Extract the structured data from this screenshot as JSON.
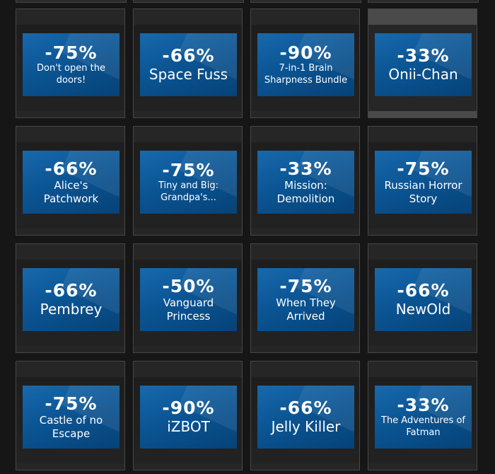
{
  "tiles": [
    {
      "discount": "-75%",
      "name": "Don't open the doors!"
    },
    {
      "discount": "-66%",
      "name": "Space Fuss"
    },
    {
      "discount": "-90%",
      "name": "7-in-1 Brain Sharpness Bundle"
    },
    {
      "discount": "-33%",
      "name": "Onii-Chan"
    },
    {
      "discount": "-66%",
      "name": "Alice's Patchwork"
    },
    {
      "discount": "-75%",
      "name": "Tiny and Big: Grandpa's..."
    },
    {
      "discount": "-33%",
      "name": "Mission: Demolition"
    },
    {
      "discount": "-75%",
      "name": "Russian Horror Story"
    },
    {
      "discount": "-66%",
      "name": "Pembrey"
    },
    {
      "discount": "-50%",
      "name": "Vanguard Princess"
    },
    {
      "discount": "-75%",
      "name": "When They Arrived"
    },
    {
      "discount": "-66%",
      "name": "NewOld"
    },
    {
      "discount": "-75%",
      "name": "Castle of no Escape"
    },
    {
      "discount": "-90%",
      "name": "iZBOT"
    },
    {
      "discount": "-66%",
      "name": "Jelly Killer"
    },
    {
      "discount": "-33%",
      "name": "The Adventures of Fatman"
    }
  ]
}
